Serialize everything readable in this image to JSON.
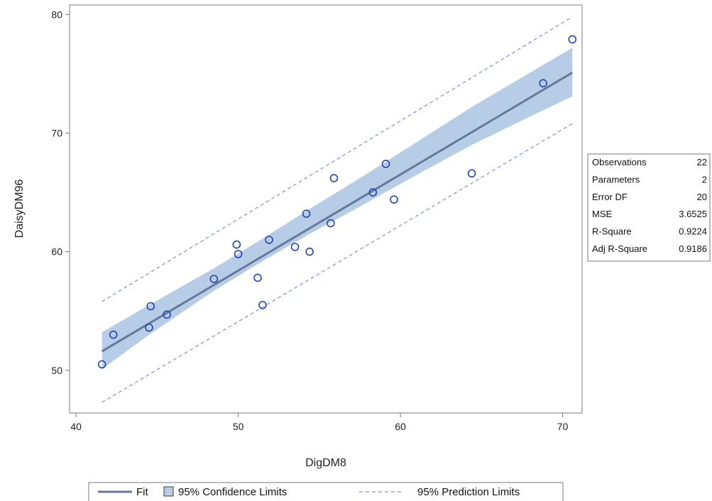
{
  "chart_data": {
    "type": "scatter",
    "xlabel": "DigDM8",
    "ylabel": "DaisyDM96",
    "xlim": [
      39.6,
      71.2
    ],
    "ylim": [
      46.4,
      80.8
    ],
    "xticks": [
      40,
      50,
      60,
      70
    ],
    "yticks": [
      50,
      60,
      70,
      80
    ],
    "points": [
      {
        "x": 41.6,
        "y": 50.5
      },
      {
        "x": 42.3,
        "y": 53.0
      },
      {
        "x": 44.5,
        "y": 53.6
      },
      {
        "x": 44.6,
        "y": 55.4
      },
      {
        "x": 45.6,
        "y": 54.7
      },
      {
        "x": 48.5,
        "y": 57.7
      },
      {
        "x": 49.9,
        "y": 60.6
      },
      {
        "x": 50.0,
        "y": 59.8
      },
      {
        "x": 51.2,
        "y": 57.8
      },
      {
        "x": 51.5,
        "y": 55.5
      },
      {
        "x": 51.9,
        "y": 61.0
      },
      {
        "x": 53.5,
        "y": 60.4
      },
      {
        "x": 54.2,
        "y": 63.2
      },
      {
        "x": 54.4,
        "y": 60.0
      },
      {
        "x": 55.7,
        "y": 62.4
      },
      {
        "x": 55.9,
        "y": 66.2
      },
      {
        "x": 58.3,
        "y": 65.0
      },
      {
        "x": 59.1,
        "y": 67.4
      },
      {
        "x": 59.6,
        "y": 64.4
      },
      {
        "x": 64.4,
        "y": 66.6
      },
      {
        "x": 68.8,
        "y": 74.2
      },
      {
        "x": 70.6,
        "y": 77.9
      }
    ],
    "fit": {
      "x": [
        41.6,
        70.6
      ],
      "y": [
        51.6,
        75.1
      ]
    },
    "confidence_band": {
      "x": [
        41.6,
        44.5,
        48.5,
        51.5,
        54.4,
        57.5,
        60.5,
        64.4,
        68.0,
        70.6
      ],
      "lower": [
        50.1,
        53.0,
        56.7,
        59.2,
        61.5,
        63.8,
        66.1,
        69.0,
        71.4,
        73.1
      ],
      "upper": [
        53.2,
        55.5,
        58.6,
        61.1,
        63.6,
        66.2,
        68.8,
        72.2,
        75.1,
        77.2
      ]
    },
    "prediction_limits": {
      "x": [
        41.6,
        70.6
      ],
      "lower": [
        47.3,
        70.8
      ],
      "upper": [
        55.8,
        79.8
      ]
    },
    "legend": {
      "placement": "bottom",
      "items": [
        "Fit",
        "95% Confidence Limits",
        "95% Prediction Limits"
      ]
    },
    "grid": false
  },
  "stats_table": {
    "rows": [
      {
        "label": "Observations",
        "value": "22"
      },
      {
        "label": "Parameters",
        "value": "2"
      },
      {
        "label": "Error DF",
        "value": "20"
      },
      {
        "label": "MSE",
        "value": "3.6525"
      },
      {
        "label": "R-Square",
        "value": "0.9224"
      },
      {
        "label": "Adj R-Square",
        "value": "0.9186"
      }
    ]
  },
  "colors": {
    "band_fill": "#b7cce6",
    "fit_line": "#66799b",
    "prediction_line": "#7f8fd6",
    "marker": "#2346a8",
    "frame": "#7a7a7a"
  }
}
